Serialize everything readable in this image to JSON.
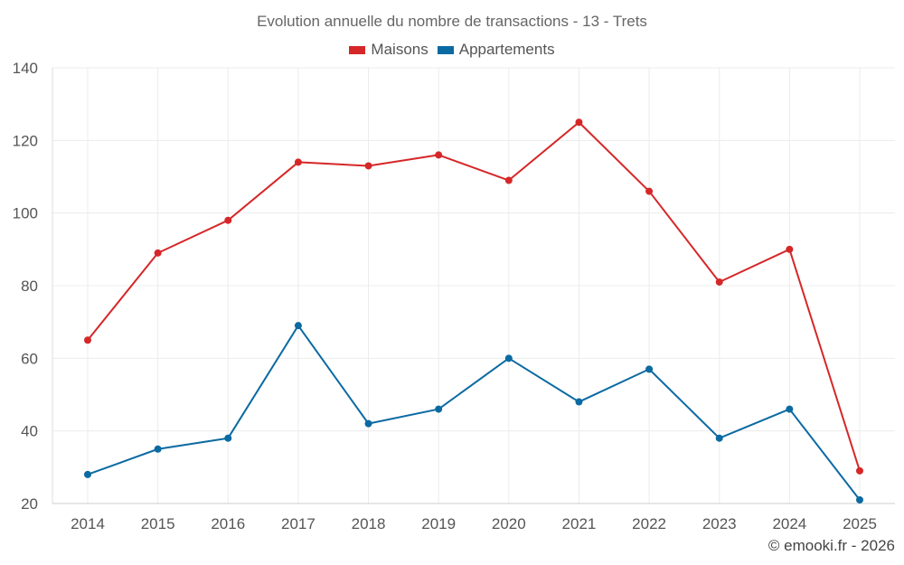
{
  "chart_data": {
    "type": "line",
    "title": "Evolution annuelle du nombre de transactions - 13 - Trets",
    "categories": [
      "2014",
      "2015",
      "2016",
      "2017",
      "2018",
      "2019",
      "2020",
      "2021",
      "2022",
      "2023",
      "2024",
      "2025"
    ],
    "series": [
      {
        "name": "Maisons",
        "color": "#d62728",
        "values": [
          65,
          89,
          98,
          114,
          113,
          116,
          109,
          125,
          106,
          81,
          90,
          29
        ]
      },
      {
        "name": "Appartements",
        "color": "#0b6aa2",
        "values": [
          28,
          35,
          38,
          69,
          42,
          46,
          60,
          48,
          57,
          38,
          46,
          21
        ]
      }
    ],
    "ylim": [
      20,
      140
    ],
    "yticks": [
      20,
      40,
      60,
      80,
      100,
      120,
      140
    ],
    "xlabel": "",
    "ylabel": "",
    "grid": true,
    "legend": "top-center"
  },
  "credit": "© emooki.fr - 2026"
}
